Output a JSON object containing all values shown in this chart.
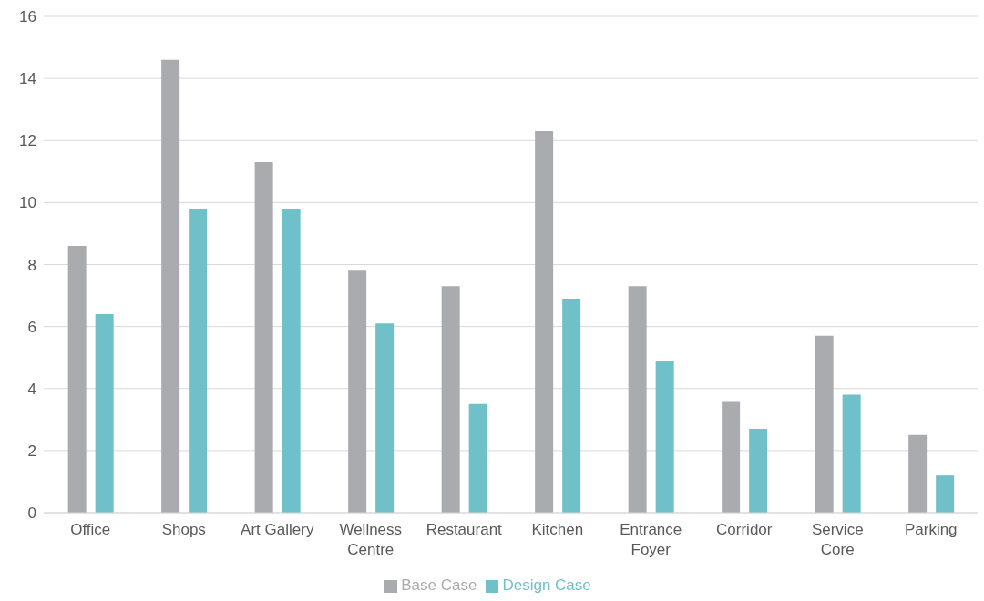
{
  "chart_data": {
    "type": "bar",
    "categories": [
      "Office",
      "Shops",
      "Art Gallery",
      "Wellness Centre",
      "Restaurant",
      "Kitchen",
      "Entrance Foyer",
      "Corridor",
      "Service Core",
      "Parking"
    ],
    "series": [
      {
        "name": "Base Case",
        "color": "#a9abae",
        "values": [
          8.6,
          14.6,
          11.3,
          7.8,
          7.3,
          12.3,
          7.3,
          3.6,
          5.7,
          2.5
        ]
      },
      {
        "name": "Design Case",
        "color": "#6fc0c8",
        "values": [
          6.4,
          9.8,
          9.8,
          6.1,
          3.5,
          6.9,
          4.9,
          2.7,
          3.8,
          1.2
        ]
      }
    ],
    "ylim": [
      0,
      16
    ],
    "yticks": [
      0,
      2,
      4,
      6,
      8,
      10,
      12,
      14,
      16
    ],
    "grid": "y",
    "legend": "bottom"
  }
}
